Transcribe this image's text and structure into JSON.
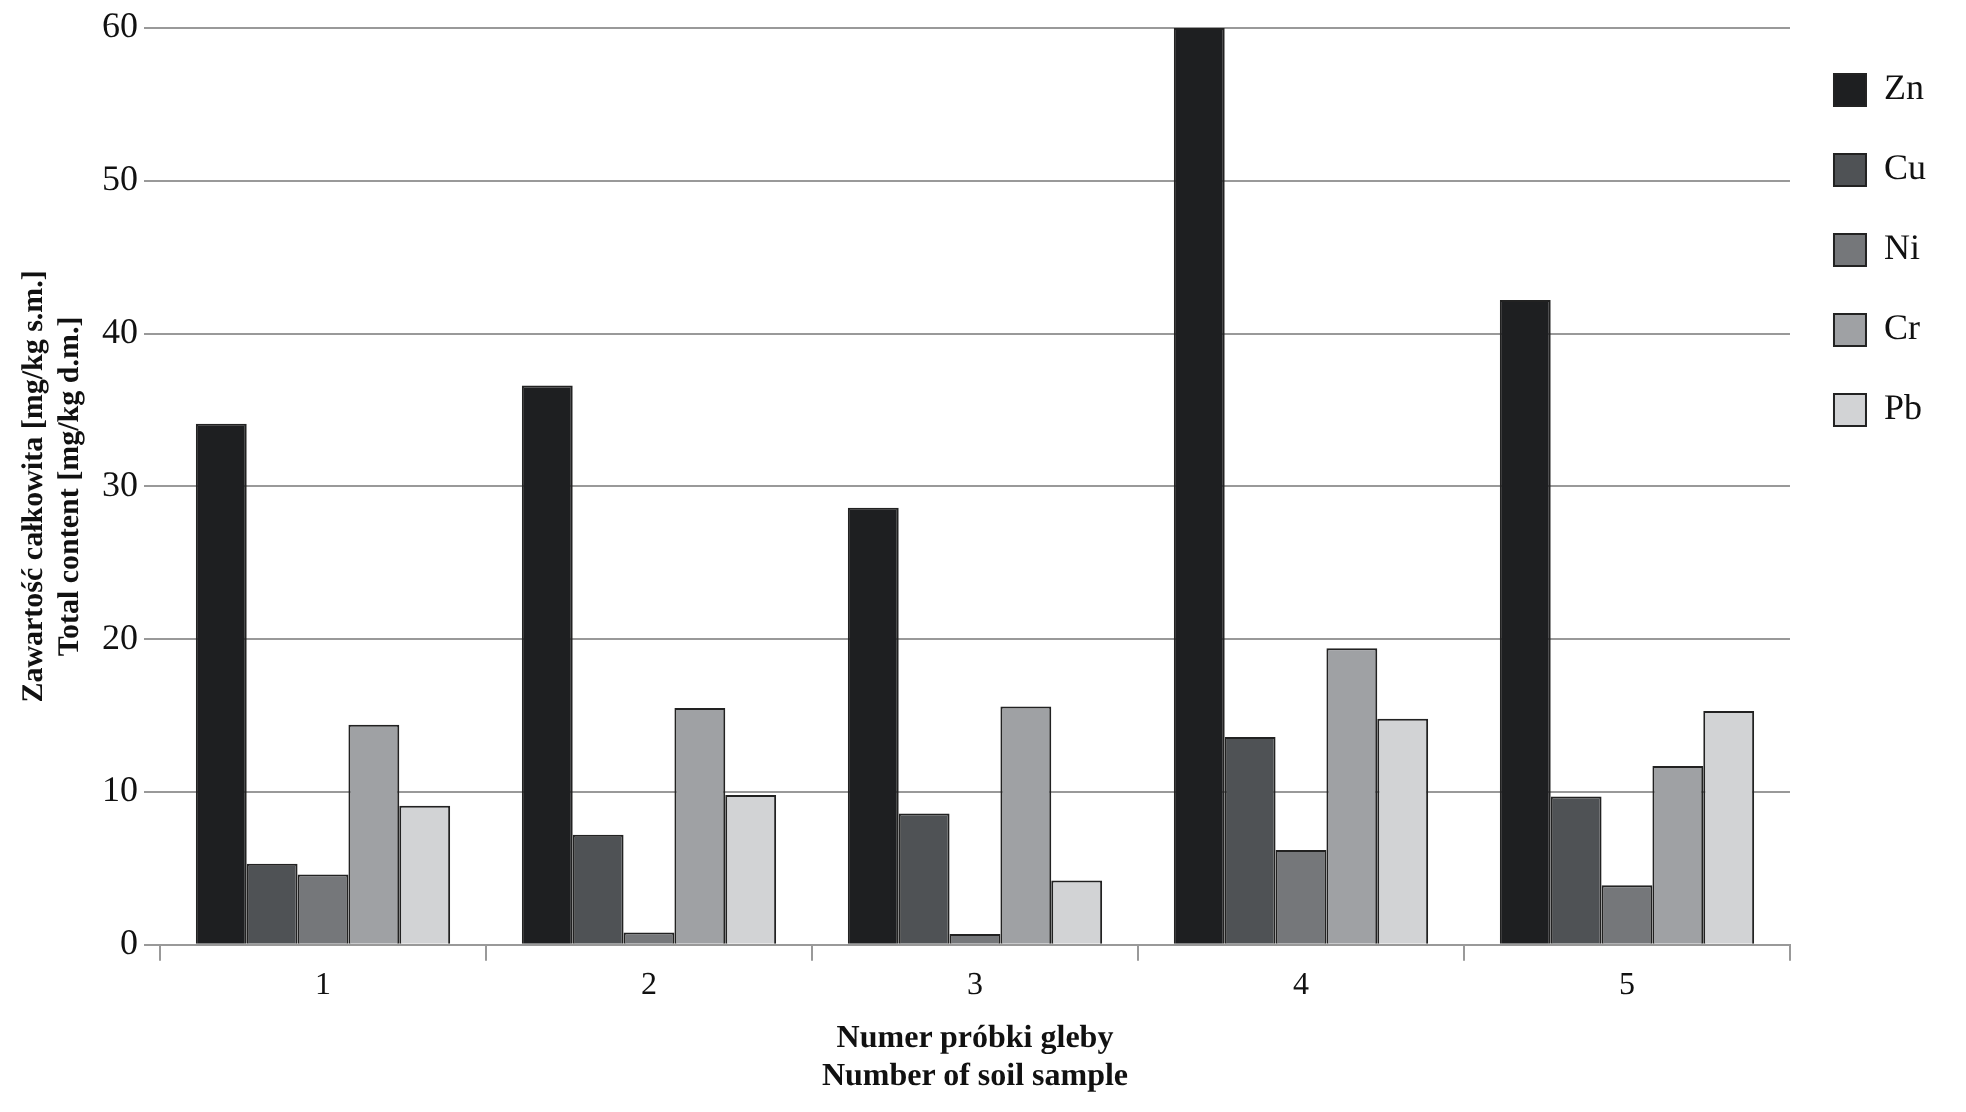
{
  "chart_data": {
    "type": "bar",
    "xlabel": "Numer próbki gleby\nNumber of soil sample",
    "ylabel": "Zawartość całkowita [mg/kg s.m.]\nTotal content [mg/kg d.m.]",
    "categories": [
      "1",
      "2",
      "3",
      "4",
      "5"
    ],
    "series": [
      {
        "name": "Zn",
        "color": "#1e1f21",
        "values": [
          34.1,
          36.6,
          28.6,
          60,
          42.2
        ]
      },
      {
        "name": "Cu",
        "color": "#4f5255",
        "values": [
          5.3,
          7.2,
          8.6,
          13.6,
          9.7
        ]
      },
      {
        "name": "Ni",
        "color": "#75777a",
        "values": [
          4.6,
          0.8,
          0.7,
          6.2,
          3.9
        ]
      },
      {
        "name": "Cr",
        "color": "#9fa1a4",
        "values": [
          14.4,
          15.5,
          15.6,
          19.4,
          11.7
        ]
      },
      {
        "name": "Pb",
        "color": "#d2d3d5",
        "values": [
          9.1,
          9.8,
          4.2,
          14.8,
          15.3
        ]
      }
    ],
    "ylim": [
      0,
      60
    ],
    "yticks": [
      0,
      10,
      20,
      30,
      40,
      50,
      60
    ],
    "grid": "y",
    "legend": "right"
  }
}
